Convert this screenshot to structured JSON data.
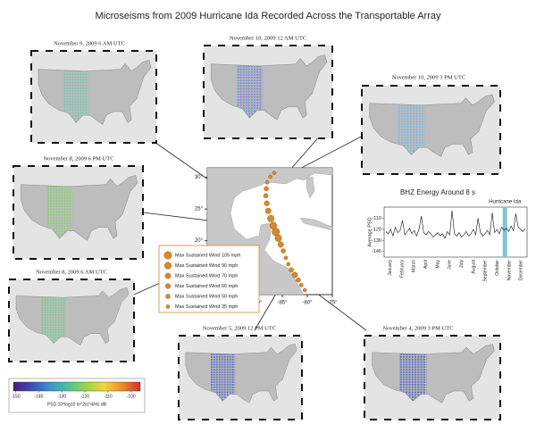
{
  "title": "Microseisms from 2009 Hurricane Ida Recorded Across the Transportable Array",
  "panels": [
    {
      "caption": "November 9, 2009 6 AM UTC",
      "color": "#7cc6b0"
    },
    {
      "caption": "November 10, 2009 12 AM UTC",
      "color": "#7a8fd0"
    },
    {
      "caption": "November 10, 2009 3 PM UTC",
      "color": "#8ab8d8"
    },
    {
      "caption": "November 8, 2009 6 PM UTC",
      "color": "#8fcf7a"
    },
    {
      "caption": "November 8, 2009 6 AM UTC",
      "color": "#7dc890"
    },
    {
      "caption": "November 5, 2009 12 PM UTC",
      "color": "#5f70c0"
    },
    {
      "caption": "November 4, 2009 3 PM UTC",
      "color": "#5a6cbc"
    }
  ],
  "track_map": {
    "xlim": [
      -100,
      -75
    ],
    "ylim": [
      11.5,
      31.5
    ],
    "xticks": [
      {
        "value": -90,
        "label": "-90°"
      },
      {
        "value": -85,
        "label": "-85°"
      },
      {
        "value": -80,
        "label": "-80°"
      },
      {
        "value": -75,
        "label": "-75°"
      }
    ],
    "yticks": [
      {
        "value": 30,
        "label": "30°"
      },
      {
        "value": 25,
        "label": "25°"
      },
      {
        "value": 20,
        "label": "20°"
      },
      {
        "value": 15,
        "label": "15°"
      }
    ],
    "color": "#d9892b",
    "points": [
      {
        "lon": -80.5,
        "lat": 12.2,
        "wind": 35
      },
      {
        "lon": -81.2,
        "lat": 13.0,
        "wind": 35
      },
      {
        "lon": -81.8,
        "lat": 13.8,
        "wind": 50
      },
      {
        "lon": -82.5,
        "lat": 14.6,
        "wind": 70
      },
      {
        "lon": -83.2,
        "lat": 15.4,
        "wind": 50
      },
      {
        "lon": -83.8,
        "lat": 16.3,
        "wind": 35
      },
      {
        "lon": -84.3,
        "lat": 17.3,
        "wind": 35
      },
      {
        "lon": -84.8,
        "lat": 18.4,
        "wind": 50
      },
      {
        "lon": -85.3,
        "lat": 19.4,
        "wind": 70
      },
      {
        "lon": -85.8,
        "lat": 20.4,
        "wind": 90
      },
      {
        "lon": -86.3,
        "lat": 21.4,
        "wind": 105
      },
      {
        "lon": -86.8,
        "lat": 22.4,
        "wind": 90
      },
      {
        "lon": -87.3,
        "lat": 23.5,
        "wind": 90
      },
      {
        "lon": -87.8,
        "lat": 24.7,
        "wind": 70
      },
      {
        "lon": -88.1,
        "lat": 25.9,
        "wind": 60
      },
      {
        "lon": -88.3,
        "lat": 27.1,
        "wind": 50
      },
      {
        "lon": -88.2,
        "lat": 28.2,
        "wind": 50
      },
      {
        "lon": -88.0,
        "lat": 29.2,
        "wind": 35
      },
      {
        "lon": -87.4,
        "lat": 30.1,
        "wind": 35
      },
      {
        "lon": -86.6,
        "lat": 30.7,
        "wind": 35
      }
    ]
  },
  "legend": [
    {
      "label": "Max Sustained Wind 105 mph",
      "wind": 105
    },
    {
      "label": "Max Sustained Wind 90 mph",
      "wind": 90
    },
    {
      "label": "Max Sustained Wind 70 mph",
      "wind": 70
    },
    {
      "label": "Max Sustained Wind 60 mph",
      "wind": 60
    },
    {
      "label": "Max Sustained Wind 50 mph",
      "wind": 50
    },
    {
      "label": "Max Sustained Wind 35 mph",
      "wind": 35
    }
  ],
  "psd_chart": {
    "type": "line",
    "title": "BHZ Energy Around 8 s",
    "annotation": "Hurricane Ida",
    "y_label": "Average PSD",
    "categories": [
      "January",
      "February",
      "March",
      "April",
      "May",
      "June",
      "July",
      "August",
      "September",
      "October",
      "November",
      "December"
    ],
    "ylim": [
      -145,
      -100
    ],
    "yticks": [
      -110,
      -120,
      -130,
      -140
    ],
    "color": "#111111",
    "highlight_color": "#7fc4d8",
    "values": [
      -122,
      -124,
      -120,
      -126,
      -118,
      -123,
      -121,
      -112,
      -125,
      -122,
      -119,
      -124,
      -121,
      -126,
      -120,
      -108,
      -123,
      -125,
      -122,
      -124,
      -127,
      -125,
      -123,
      -126,
      -124,
      -128,
      -122,
      -125,
      -103,
      -124,
      -126,
      -123,
      -127,
      -125,
      -122,
      -126,
      -124,
      -120,
      -125,
      -110,
      -123,
      -126,
      -124,
      -121,
      -125,
      -105,
      -123,
      -120,
      -124,
      -118,
      -121,
      -119,
      -122,
      -117,
      -121,
      -106,
      -118,
      -120,
      -122,
      -119
    ]
  },
  "colorbar": {
    "label": "PSD 10*log10 m^2/s^4/Hz dB",
    "range": [
      -151,
      -96
    ],
    "ticks": [
      -150,
      -140,
      -130,
      -120,
      -110,
      -100
    ],
    "colors": [
      "#4b1c7a",
      "#3a4fb0",
      "#3f8fd0",
      "#4fc0a0",
      "#9bd34a",
      "#f0d93a",
      "#f08a2a",
      "#d0302a"
    ]
  }
}
